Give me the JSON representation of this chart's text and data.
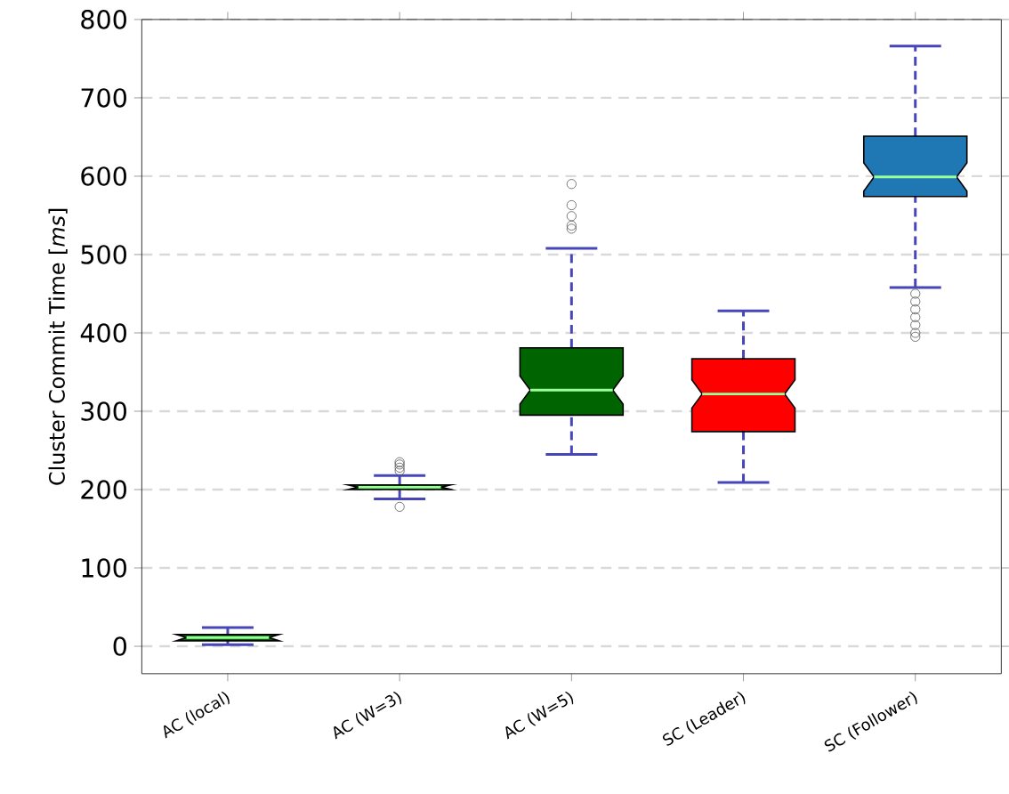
{
  "chart_data": {
    "type": "box",
    "ylabel": "Cluster Commit Time [*ms*]",
    "categories": [
      "AC (local)",
      "AC (W=3)",
      "AC (W=5)",
      "SC (Leader)",
      "SC (Follower)"
    ],
    "colors": [
      "#006400",
      "#006400",
      "#006400",
      "#ff0000",
      "#1f77b4"
    ],
    "boxes": [
      {
        "low": 2,
        "q1": 7,
        "median": 11,
        "q3": 15,
        "high": 24
      },
      {
        "low": 188,
        "q1": 200,
        "median": 203,
        "q3": 206,
        "high": 218,
        "outliers": [
          178,
          224,
          228,
          232,
          235
        ]
      },
      {
        "low": 245,
        "q1": 295,
        "median": 327,
        "q3": 381,
        "high": 508,
        "outliers": [
          533,
          537,
          549,
          563,
          590
        ]
      },
      {
        "low": 209,
        "q1": 274,
        "median": 322,
        "q3": 367,
        "high": 428
      },
      {
        "low": 458,
        "q1": 574,
        "median": 599,
        "q3": 651,
        "high": 766,
        "outliers": [
          395,
          400,
          410,
          420,
          430,
          440,
          450
        ]
      }
    ],
    "ylim": [
      -35,
      800
    ],
    "yticks": [
      0,
      100,
      200,
      300,
      400,
      500,
      600,
      700,
      800
    ],
    "grid": "y"
  }
}
